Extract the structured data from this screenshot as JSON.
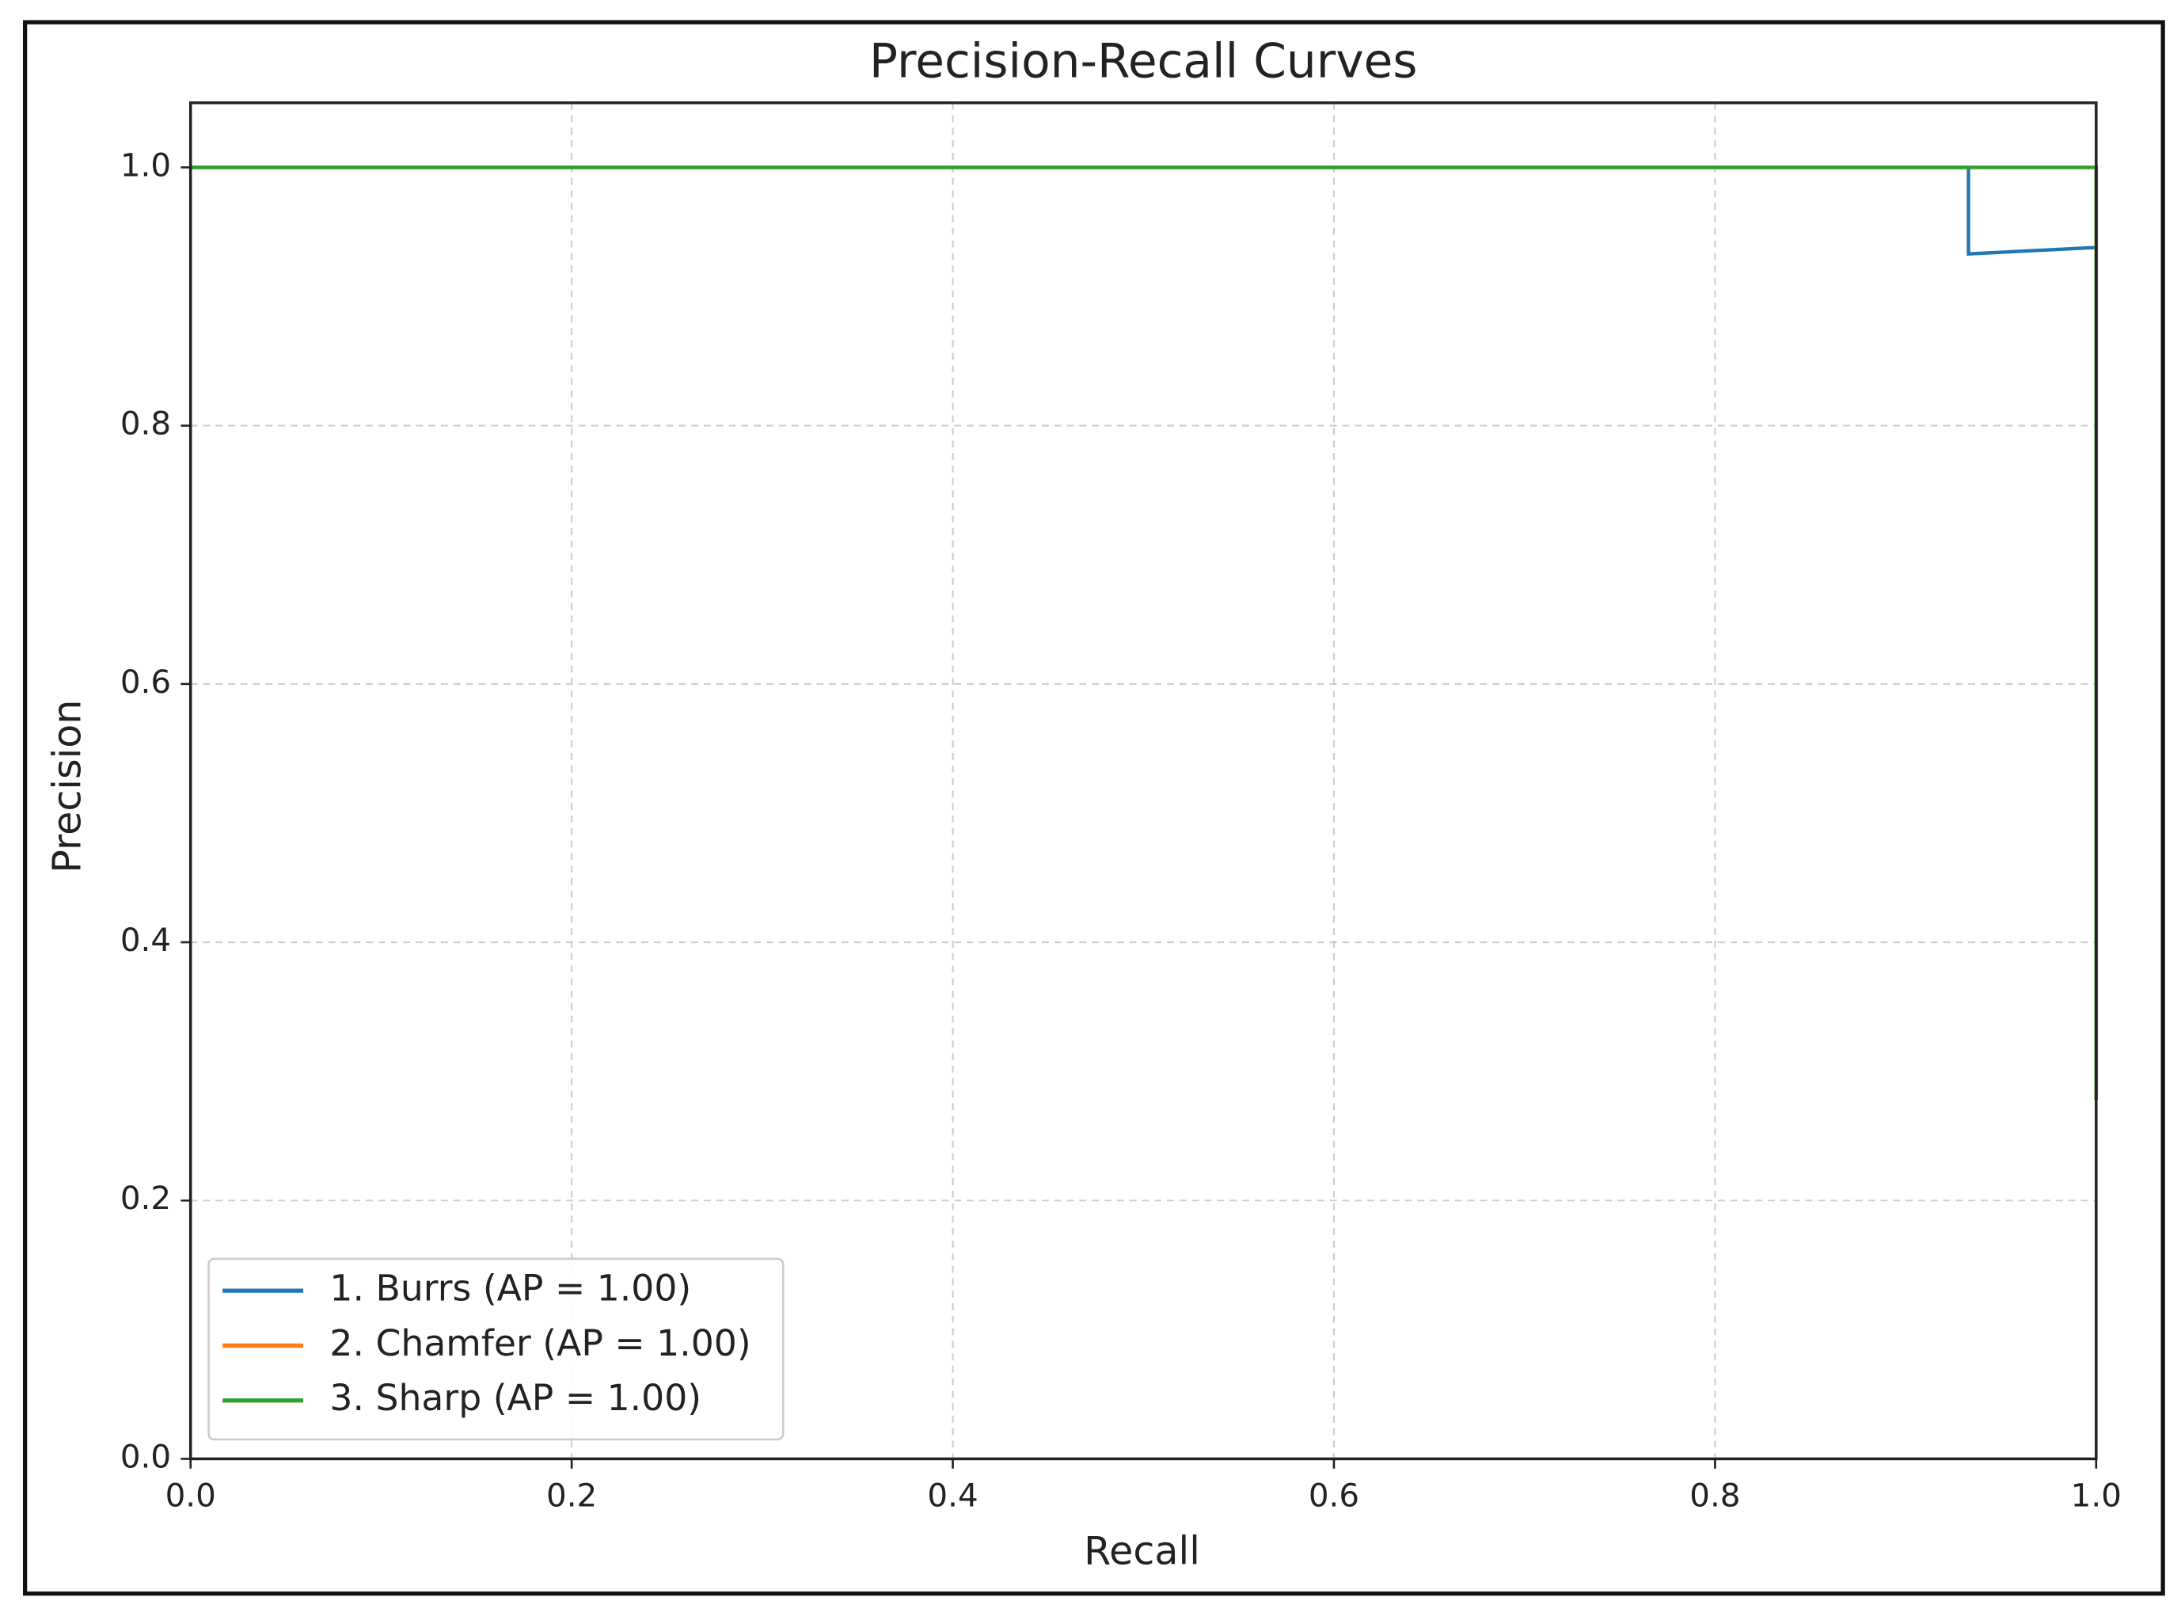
{
  "chart_data": {
    "type": "line",
    "title": "Precision-Recall Curves",
    "x_label": "Recall",
    "y_label": "Precision",
    "xlim": [
      0,
      1
    ],
    "ylim": [
      0,
      1.05
    ],
    "xticks": [
      {
        "value": 0,
        "label": "0.0"
      },
      0.2,
      0.4,
      0.6,
      0.8,
      {
        "value": 1,
        "label": "1.0"
      }
    ],
    "yticks": [
      {
        "value": 0,
        "label": "0.0"
      },
      0.2,
      0.4,
      0.6,
      0.8,
      {
        "value": 1,
        "label": "1.0"
      }
    ],
    "grid": true,
    "legend": "lower left",
    "series": [
      {
        "name": "1. Burrs (AP = 1.00)",
        "color": "#1f77b4",
        "x": [
          0,
          0.933,
          0.933,
          1,
          1
        ],
        "values": [
          1,
          1,
          0.933,
          0.938,
          0.278
        ]
      },
      {
        "name": "2. Chamfer (AP = 1.00)",
        "color": "#ff7f0e",
        "x": [
          0,
          1,
          1
        ],
        "values": [
          1,
          1,
          0.278
        ]
      },
      {
        "name": "3. Sharp (AP = 1.00)",
        "color": "#2ca02c",
        "x": [
          0,
          1,
          1
        ],
        "values": [
          1,
          1,
          0.278
        ]
      }
    ]
  }
}
